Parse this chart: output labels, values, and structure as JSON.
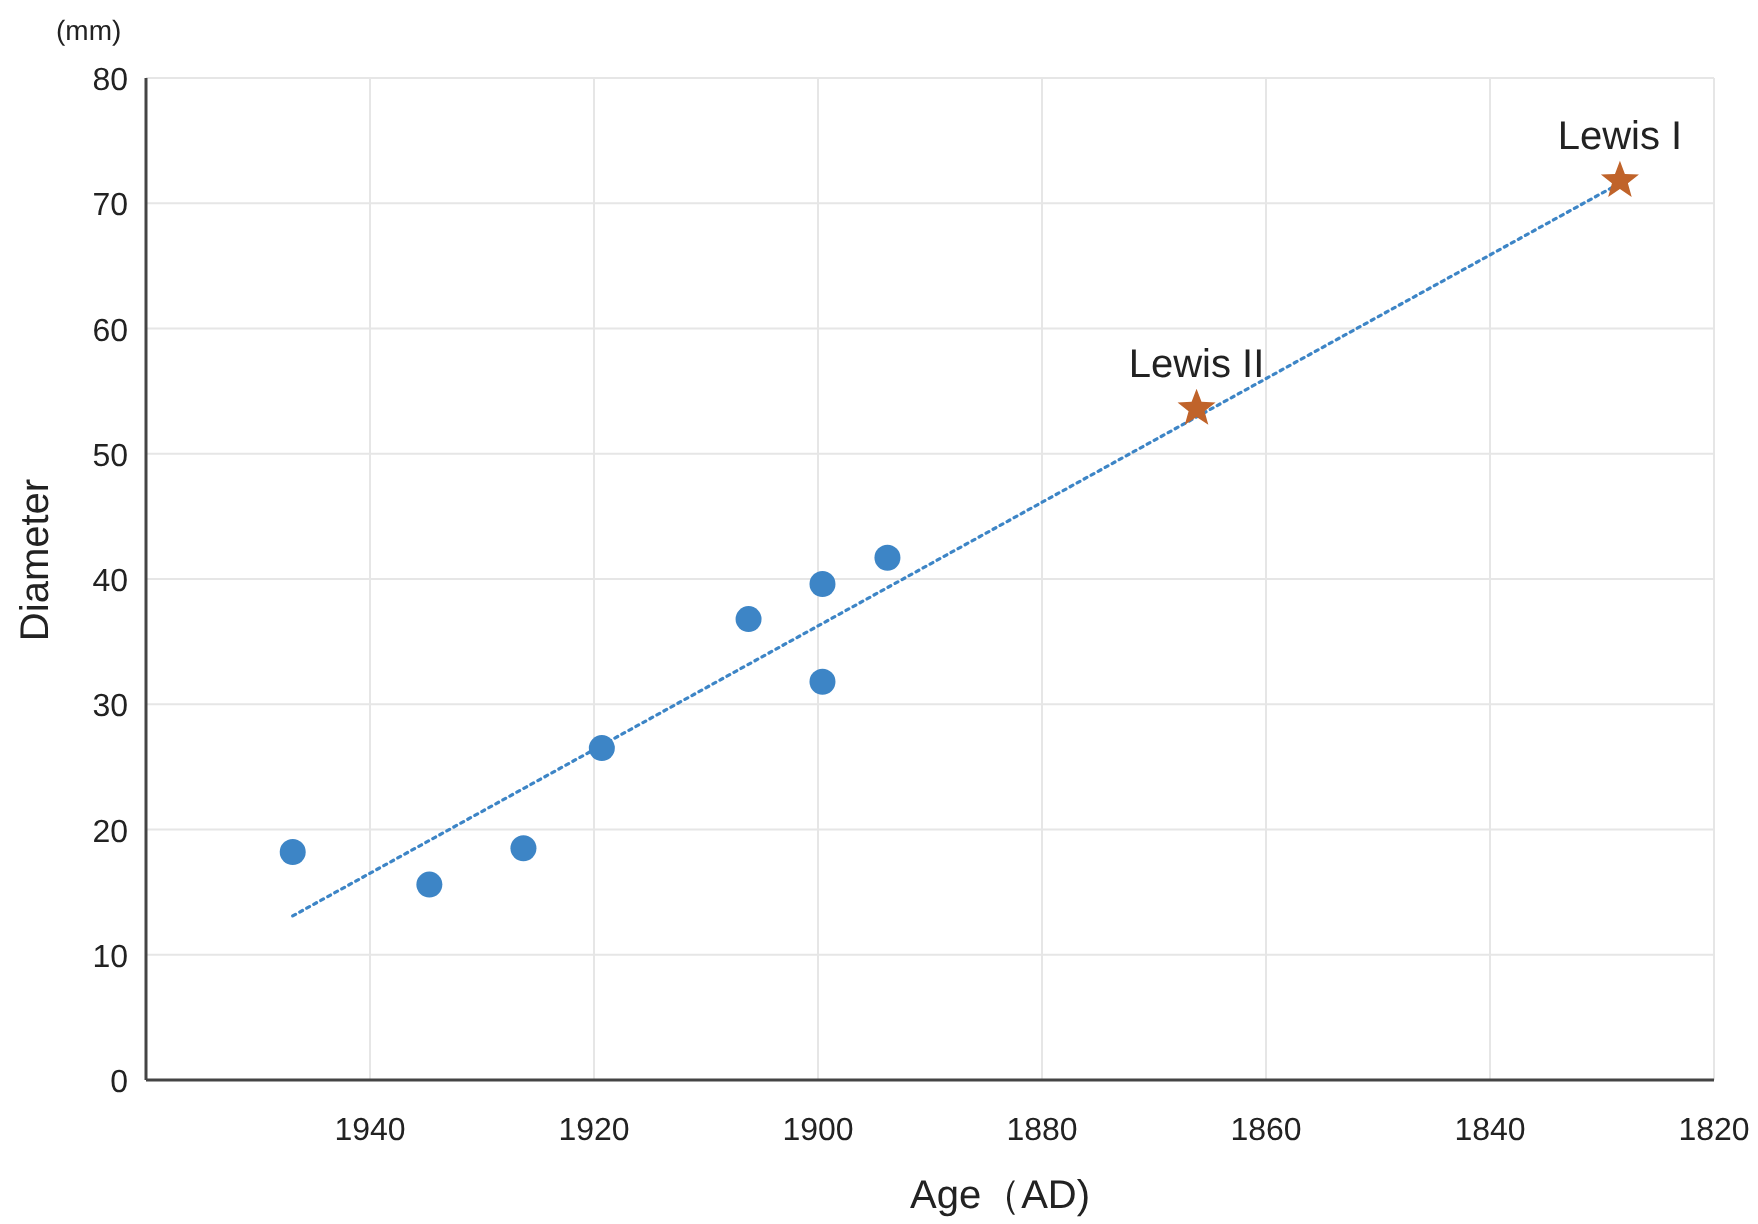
{
  "chart_data": {
    "type": "scatter",
    "xlabel": "Age（AD)",
    "ylabel": "Diameter",
    "annotations": [
      "(mm)",
      {
        "text": "Lewis I",
        "x": 1828.4,
        "y": 71.8
      },
      {
        "text": "Lewis II",
        "x": 1866.2,
        "y": 53.6
      }
    ],
    "xlim": [
      1960,
      1820
    ],
    "xticks": [
      1940,
      1920,
      1900,
      1880,
      1860,
      1840,
      1820
    ],
    "ylim": [
      0,
      80
    ],
    "yticks": [
      0,
      10,
      20,
      30,
      40,
      50,
      60,
      70,
      80
    ],
    "grid": true,
    "series": [
      {
        "type": "line",
        "color": "#3d85c6",
        "line_style": "dotted",
        "marker": "none",
        "x": [
          1946.9,
          1828.4
        ],
        "values": [
          13.1,
          71.6
        ]
      },
      {
        "type": "scatter",
        "color": "#3d85c6",
        "marker": "circle",
        "x": [
          1946.9,
          1934.7,
          1926.3,
          1919.3,
          1906.2,
          1899.6,
          1899.6,
          1893.8
        ],
        "values": [
          18.2,
          15.6,
          18.5,
          26.5,
          36.8,
          31.8,
          39.6,
          41.7
        ]
      },
      {
        "type": "scatter",
        "color": "#c0632a",
        "marker": "star",
        "x": [
          1866.2,
          1828.4
        ],
        "values": [
          53.6,
          71.8
        ]
      }
    ]
  }
}
